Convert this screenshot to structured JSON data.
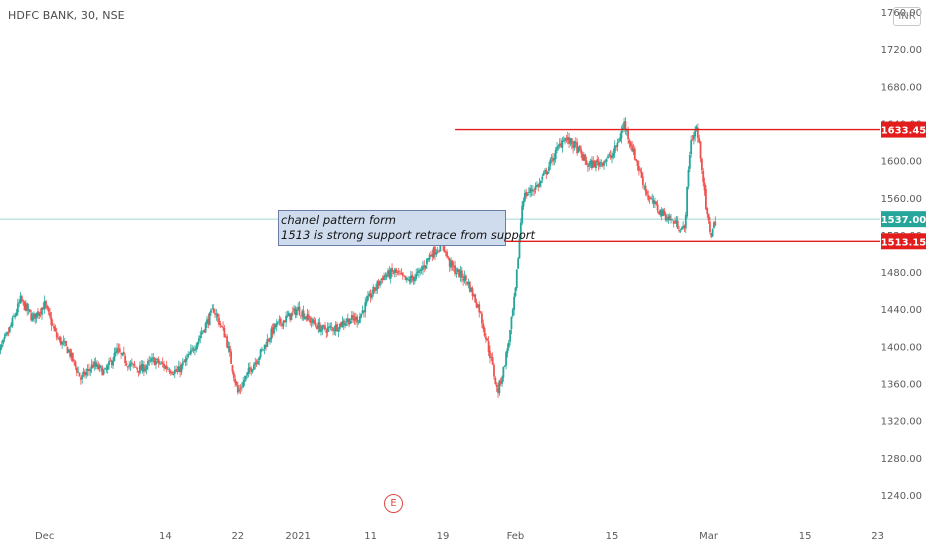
{
  "header": {
    "symbol_title": "HDFC BANK, 30, NSE",
    "currency": "INR"
  },
  "annotation": {
    "line1": "chanel pattern form",
    "line2": "1513 is strong support retrace from support"
  },
  "event_marker": {
    "label": "E"
  },
  "colors": {
    "up": "#26a69a",
    "down": "#ef5350",
    "level": "#e31c1c",
    "price_tag": "#26a69a",
    "axis_text": "#5b5b5b"
  },
  "chart_data": {
    "type": "candlestick",
    "price_axis": {
      "ylim": [
        1213,
        1773
      ],
      "ticks": [
        1760,
        1720,
        1680,
        1640,
        1600,
        1560,
        1520,
        1480,
        1440,
        1400,
        1360,
        1320,
        1280,
        1240
      ],
      "tick_labels": [
        "1760.00",
        "1720.00",
        "1680.00",
        "1640.00",
        "1600.00",
        "1560.00",
        "1520.00",
        "1480.00",
        "1440.00",
        "1400.00",
        "1360.00",
        "1320.00",
        "1280.00",
        "1240.00"
      ]
    },
    "time_axis": {
      "tick_labels": [
        "Dec",
        "14",
        "22",
        "2021",
        "11",
        "19",
        "Feb",
        "15",
        "Mar",
        "15",
        "23"
      ],
      "tick_sessions": [
        0,
        10,
        16,
        21,
        27,
        33,
        39,
        47,
        55,
        63,
        69
      ],
      "visible_sessions": [
        -3.7,
        69.2
      ]
    },
    "levels": [
      {
        "name": "resistance",
        "value": 1633.45,
        "label": "1633.45",
        "from_session": 34,
        "color": "#e31c1c"
      },
      {
        "name": "support",
        "value": 1513.15,
        "label": "1513.15",
        "from_session": 31,
        "color": "#e31c1c"
      }
    ],
    "last_price": {
      "value": 1537.0,
      "label": "1537.00"
    },
    "path": [
      [
        -4,
        1388
      ],
      [
        -3,
        1415
      ],
      [
        -2,
        1450
      ],
      [
        -1,
        1430
      ],
      [
        0,
        1445
      ],
      [
        1,
        1410
      ],
      [
        2,
        1395
      ],
      [
        3,
        1365
      ],
      [
        4,
        1380
      ],
      [
        5,
        1372
      ],
      [
        6,
        1395
      ],
      [
        7,
        1380
      ],
      [
        8,
        1375
      ],
      [
        9,
        1385
      ],
      [
        10,
        1378
      ],
      [
        11,
        1372
      ],
      [
        12,
        1390
      ],
      [
        13,
        1415
      ],
      [
        14,
        1440
      ],
      [
        15,
        1410
      ],
      [
        16,
        1350
      ],
      [
        17,
        1375
      ],
      [
        18,
        1395
      ],
      [
        19,
        1420
      ],
      [
        20,
        1430
      ],
      [
        21,
        1440
      ],
      [
        22,
        1428
      ],
      [
        23,
        1418
      ],
      [
        24,
        1420
      ],
      [
        25,
        1428
      ],
      [
        26,
        1430
      ],
      [
        27,
        1455
      ],
      [
        28,
        1475
      ],
      [
        29,
        1480
      ],
      [
        30,
        1470
      ],
      [
        31,
        1478
      ],
      [
        32,
        1500
      ],
      [
        33,
        1510
      ],
      [
        33.5,
        1490
      ],
      [
        34,
        1482
      ],
      [
        35,
        1470
      ],
      [
        36,
        1440
      ],
      [
        37,
        1385
      ],
      [
        37.5,
        1350
      ],
      [
        38,
        1375
      ],
      [
        38.5,
        1410
      ],
      [
        39,
        1460
      ],
      [
        39.3,
        1510
      ],
      [
        39.6,
        1560
      ],
      [
        40,
        1565
      ],
      [
        41,
        1575
      ],
      [
        42,
        1600
      ],
      [
        43,
        1625
      ],
      [
        44,
        1615
      ],
      [
        45,
        1595
      ],
      [
        46,
        1598
      ],
      [
        47,
        1605
      ],
      [
        47.5,
        1620
      ],
      [
        48,
        1640
      ],
      [
        49,
        1600
      ],
      [
        50,
        1560
      ],
      [
        51,
        1545
      ],
      [
        52,
        1535
      ],
      [
        53,
        1525
      ],
      [
        53.5,
        1620
      ],
      [
        54,
        1635
      ],
      [
        54.4,
        1600
      ],
      [
        54.8,
        1545
      ],
      [
        55.2,
        1520
      ],
      [
        55.6,
        1537
      ]
    ]
  }
}
